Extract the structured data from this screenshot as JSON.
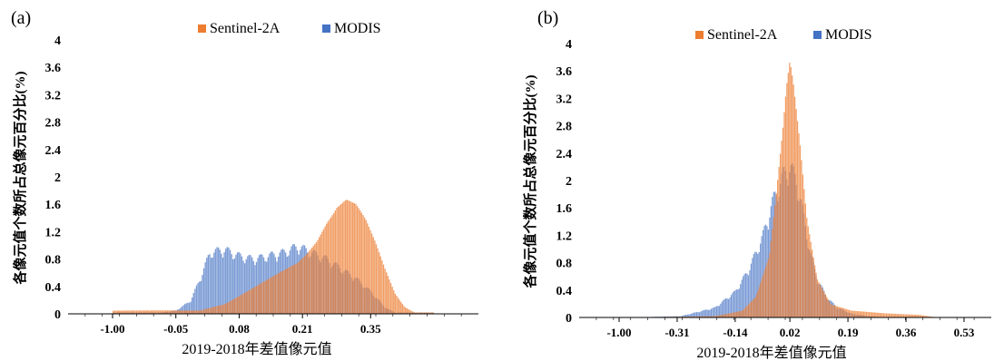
{
  "chart_data": [
    {
      "panel_label": "(a)",
      "type": "bar",
      "xlabel": "2019-2018年差值像元值",
      "ylabel": "各像元值个数所占总像元百分比(%)",
      "ylim": [
        0,
        4
      ],
      "yticks": [
        "0",
        "0.4",
        "0.8",
        "1.2",
        "1.6",
        "2",
        "2.4",
        "2.8",
        "3.2",
        "3.6",
        "4"
      ],
      "xticks": [
        "-1.00",
        "-0.05",
        "0.08",
        "0.21",
        "0.35"
      ],
      "xtick_positions": [
        -0.18,
        -0.05,
        0.08,
        0.21,
        0.35
      ],
      "xrange": [
        -0.18,
        0.48
      ],
      "legend_position": "top-center",
      "series": [
        {
          "name": "Sentinel-2A",
          "color": "#ED7D31",
          "peak": 1.75,
          "x": [
            0.0,
            0.05,
            0.1,
            0.15,
            0.2,
            0.22,
            0.24,
            0.26,
            0.28,
            0.3,
            0.32,
            0.34,
            0.36,
            0.38,
            0.4,
            0.42,
            0.44
          ],
          "values": [
            0.05,
            0.15,
            0.35,
            0.55,
            0.75,
            0.9,
            1.1,
            1.4,
            1.65,
            1.75,
            1.65,
            1.4,
            1.05,
            0.65,
            0.3,
            0.1,
            0.02
          ]
        },
        {
          "name": "MODIS",
          "color": "#4472C4",
          "peak": 1.05,
          "x": [
            -0.08,
            -0.05,
            -0.02,
            0.0,
            0.02,
            0.05,
            0.08,
            0.11,
            0.14,
            0.17,
            0.2,
            0.23,
            0.26,
            0.29,
            0.32,
            0.35,
            0.38,
            0.4
          ],
          "values": [
            0.02,
            0.05,
            0.2,
            0.55,
            0.95,
            1.0,
            0.9,
            0.85,
            0.9,
            0.95,
            1.05,
            0.95,
            0.85,
            0.7,
            0.55,
            0.35,
            0.1,
            0.02
          ]
        }
      ]
    },
    {
      "panel_label": "(b)",
      "type": "bar",
      "xlabel": "2019-2018年差值像元值",
      "ylabel": "各像元值个数所占总像元百分比(%)",
      "ylim": [
        0,
        4
      ],
      "yticks": [
        "0",
        "0.4",
        "0.8",
        "1.2",
        "1.6",
        "2",
        "2.4",
        "2.8",
        "3.2",
        "3.6",
        "4"
      ],
      "xticks": [
        "-1.00",
        "-0.31",
        "-0.14",
        "0.02",
        "0.19",
        "0.36",
        "0.53"
      ],
      "xtick_positions": [
        -0.48,
        -0.31,
        -0.14,
        0.02,
        0.19,
        0.36,
        0.53
      ],
      "xrange": [
        -0.48,
        0.53
      ],
      "legend_position": "top-center",
      "series": [
        {
          "name": "Sentinel-2A",
          "color": "#ED7D31",
          "peak": 3.8,
          "x": [
            -0.45,
            -0.2,
            -0.12,
            -0.08,
            -0.04,
            -0.02,
            0.0,
            0.01,
            0.02,
            0.03,
            0.05,
            0.07,
            0.1,
            0.14,
            0.2,
            0.3,
            0.4,
            0.45
          ],
          "values": [
            0.0,
            0.02,
            0.1,
            0.3,
            0.9,
            1.8,
            2.8,
            3.4,
            3.8,
            3.5,
            2.6,
            1.5,
            0.6,
            0.2,
            0.1,
            0.06,
            0.04,
            0.0
          ]
        },
        {
          "name": "MODIS",
          "color": "#4472C4",
          "peak": 2.35,
          "x": [
            -0.45,
            -0.3,
            -0.2,
            -0.14,
            -0.1,
            -0.06,
            -0.03,
            0.0,
            0.02,
            0.04,
            0.06,
            0.08,
            0.1,
            0.13,
            0.16,
            0.2,
            0.25,
            0.3
          ],
          "values": [
            0.0,
            0.02,
            0.15,
            0.4,
            0.75,
            1.25,
            1.8,
            2.2,
            2.35,
            2.1,
            1.6,
            1.0,
            0.6,
            0.3,
            0.15,
            0.06,
            0.02,
            0.0
          ]
        }
      ]
    }
  ]
}
